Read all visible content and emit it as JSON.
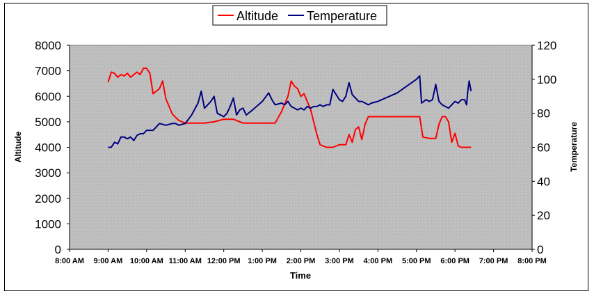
{
  "chart_data": {
    "type": "line",
    "xlabel": "Time",
    "ylabel_left": "Altitude",
    "ylabel_right": "Temperature",
    "x_ticks": [
      "8:00 AM",
      "9:00 AM",
      "10:00 AM",
      "11:00 AM",
      "12:00 PM",
      "1:00 PM",
      "2:00 PM",
      "3:00 PM",
      "4:00 PM",
      "5:00 PM",
      "6:00 PM",
      "7:00 PM",
      "8:00 PM"
    ],
    "y_left_ticks": [
      "0",
      "1000",
      "2000",
      "3000",
      "4000",
      "5000",
      "6000",
      "7000",
      "8000"
    ],
    "y_right_ticks": [
      "0",
      "20",
      "40",
      "60",
      "80",
      "100",
      "120"
    ],
    "ylim_left": [
      0,
      8000
    ],
    "ylim_right": [
      0,
      120
    ],
    "xlim": [
      "8:00 AM",
      "8:00 PM"
    ],
    "legend": {
      "position": "top",
      "entries": [
        "Altitude",
        "Temperature"
      ]
    },
    "grid": false,
    "plot_background": "#c0c0c0",
    "series": [
      {
        "name": "Altitude",
        "axis": "left",
        "color": "#ff0000",
        "points": [
          [
            "9:00 AM",
            6550
          ],
          [
            "9:05 AM",
            6950
          ],
          [
            "9:10 AM",
            6900
          ],
          [
            "9:15 AM",
            6750
          ],
          [
            "9:20 AM",
            6850
          ],
          [
            "9:25 AM",
            6800
          ],
          [
            "9:30 AM",
            6900
          ],
          [
            "9:35 AM",
            6750
          ],
          [
            "9:40 AM",
            6850
          ],
          [
            "9:45 AM",
            6950
          ],
          [
            "9:50 AM",
            6850
          ],
          [
            "9:55 AM",
            7100
          ],
          [
            "10:00 AM",
            7100
          ],
          [
            "10:05 AM",
            6900
          ],
          [
            "10:10 AM",
            6100
          ],
          [
            "10:15 AM",
            6200
          ],
          [
            "10:20 AM",
            6300
          ],
          [
            "10:25 AM",
            6600
          ],
          [
            "10:30 AM",
            5900
          ],
          [
            "10:40 AM",
            5300
          ],
          [
            "10:50 AM",
            5050
          ],
          [
            "11:00 AM",
            4950
          ],
          [
            "11:15 AM",
            4950
          ],
          [
            "11:30 AM",
            4950
          ],
          [
            "11:45 AM",
            5000
          ],
          [
            "12:00 PM",
            5100
          ],
          [
            "12:15 PM",
            5100
          ],
          [
            "12:30 PM",
            4950
          ],
          [
            "12:45 PM",
            4950
          ],
          [
            "1:00 PM",
            4950
          ],
          [
            "1:15 PM",
            4950
          ],
          [
            "1:20 PM",
            4950
          ],
          [
            "1:30 PM",
            5400
          ],
          [
            "1:40 PM",
            6000
          ],
          [
            "1:45 PM",
            6600
          ],
          [
            "1:50 PM",
            6400
          ],
          [
            "1:55 PM",
            6300
          ],
          [
            "2:00 PM",
            6000
          ],
          [
            "2:05 PM",
            6100
          ],
          [
            "2:10 PM",
            5800
          ],
          [
            "2:15 PM",
            5500
          ],
          [
            "2:20 PM",
            5000
          ],
          [
            "2:25 PM",
            4500
          ],
          [
            "2:30 PM",
            4100
          ],
          [
            "2:40 PM",
            4000
          ],
          [
            "2:50 PM",
            4000
          ],
          [
            "3:00 PM",
            4100
          ],
          [
            "3:10 PM",
            4100
          ],
          [
            "3:15 PM",
            4500
          ],
          [
            "3:20 PM",
            4200
          ],
          [
            "3:25 PM",
            4700
          ],
          [
            "3:30 PM",
            4800
          ],
          [
            "3:35 PM",
            4300
          ],
          [
            "3:40 PM",
            4900
          ],
          [
            "3:45 PM",
            5200
          ],
          [
            "4:00 PM",
            5200
          ],
          [
            "4:30 PM",
            5200
          ],
          [
            "5:00 PM",
            5200
          ],
          [
            "5:05 PM",
            5200
          ],
          [
            "5:10 PM",
            4400
          ],
          [
            "5:20 PM",
            4350
          ],
          [
            "5:30 PM",
            4350
          ],
          [
            "5:35 PM",
            4900
          ],
          [
            "5:40 PM",
            5200
          ],
          [
            "5:45 PM",
            5200
          ],
          [
            "5:50 PM",
            5000
          ],
          [
            "5:55 PM",
            4200
          ],
          [
            "6:00 PM",
            4550
          ],
          [
            "6:05 PM",
            4050
          ],
          [
            "6:10 PM",
            4000
          ],
          [
            "6:20 PM",
            4000
          ],
          [
            "6:25 PM",
            4000
          ]
        ]
      },
      {
        "name": "Temperature",
        "axis": "right",
        "color": "#000080",
        "points": [
          [
            "9:00 AM",
            60
          ],
          [
            "9:05 AM",
            60
          ],
          [
            "9:10 AM",
            63
          ],
          [
            "9:15 AM",
            62
          ],
          [
            "9:20 AM",
            66
          ],
          [
            "9:25 AM",
            66
          ],
          [
            "9:30 AM",
            65
          ],
          [
            "9:35 AM",
            66
          ],
          [
            "9:40 AM",
            64
          ],
          [
            "9:45 AM",
            67
          ],
          [
            "9:50 AM",
            68
          ],
          [
            "9:55 AM",
            68
          ],
          [
            "10:00 AM",
            70
          ],
          [
            "10:10 AM",
            70
          ],
          [
            "10:15 AM",
            72
          ],
          [
            "10:20 AM",
            74
          ],
          [
            "10:30 AM",
            73
          ],
          [
            "10:40 AM",
            74
          ],
          [
            "10:45 AM",
            74
          ],
          [
            "10:50 AM",
            73
          ],
          [
            "11:00 AM",
            74
          ],
          [
            "11:10 AM",
            79
          ],
          [
            "11:20 AM",
            86
          ],
          [
            "11:25 AM",
            93
          ],
          [
            "11:30 AM",
            83
          ],
          [
            "11:35 AM",
            85
          ],
          [
            "11:40 AM",
            87
          ],
          [
            "11:45 AM",
            90
          ],
          [
            "11:50 AM",
            80
          ],
          [
            "12:00 PM",
            78
          ],
          [
            "12:05 PM",
            80
          ],
          [
            "12:10 PM",
            84
          ],
          [
            "12:15 PM",
            89
          ],
          [
            "12:20 PM",
            79
          ],
          [
            "12:25 PM",
            82
          ],
          [
            "12:30 PM",
            83
          ],
          [
            "12:35 PM",
            79
          ],
          [
            "12:45 PM",
            82
          ],
          [
            "1:00 PM",
            87
          ],
          [
            "1:10 PM",
            92
          ],
          [
            "1:15 PM",
            88
          ],
          [
            "1:20 PM",
            85
          ],
          [
            "1:30 PM",
            86
          ],
          [
            "1:35 PM",
            85
          ],
          [
            "1:40 PM",
            87
          ],
          [
            "1:45 PM",
            84
          ],
          [
            "1:55 PM",
            82
          ],
          [
            "2:00 PM",
            83
          ],
          [
            "2:05 PM",
            82
          ],
          [
            "2:10 PM",
            84
          ],
          [
            "2:15 PM",
            83
          ],
          [
            "2:20 PM",
            84
          ],
          [
            "2:25 PM",
            84
          ],
          [
            "2:30 PM",
            85
          ],
          [
            "2:35 PM",
            84
          ],
          [
            "2:40 PM",
            85
          ],
          [
            "2:45 PM",
            85
          ],
          [
            "2:50 PM",
            94
          ],
          [
            "3:00 PM",
            88
          ],
          [
            "3:05 PM",
            87
          ],
          [
            "3:10 PM",
            90
          ],
          [
            "3:15 PM",
            98
          ],
          [
            "3:20 PM",
            91
          ],
          [
            "3:25 PM",
            89
          ],
          [
            "3:30 PM",
            87
          ],
          [
            "3:35 PM",
            87
          ],
          [
            "3:40 PM",
            86
          ],
          [
            "3:45 PM",
            85
          ],
          [
            "3:50 PM",
            86
          ],
          [
            "4:00 PM",
            87
          ],
          [
            "4:30 PM",
            92
          ],
          [
            "5:00 PM",
            100
          ],
          [
            "5:05 PM",
            102
          ],
          [
            "5:08 PM",
            86
          ],
          [
            "5:15 PM",
            88
          ],
          [
            "5:20 PM",
            87
          ],
          [
            "5:25 PM",
            88
          ],
          [
            "5:30 PM",
            97
          ],
          [
            "5:35 PM",
            87
          ],
          [
            "5:40 PM",
            85
          ],
          [
            "5:50 PM",
            83
          ],
          [
            "5:55 PM",
            85
          ],
          [
            "6:00 PM",
            87
          ],
          [
            "6:05 PM",
            86
          ],
          [
            "6:10 PM",
            88
          ],
          [
            "6:15 PM",
            88
          ],
          [
            "6:18 PM",
            85
          ],
          [
            "6:20 PM",
            93
          ],
          [
            "6:22 PM",
            99
          ],
          [
            "6:25 PM",
            93
          ]
        ]
      }
    ]
  }
}
